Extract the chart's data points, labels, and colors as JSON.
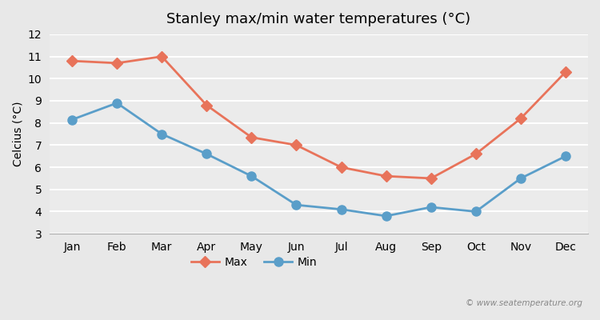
{
  "title": "Stanley max/min water temperatures (°C)",
  "xlabel": "",
  "ylabel": "Celcius (°C)",
  "months": [
    "Jan",
    "Feb",
    "Mar",
    "Apr",
    "May",
    "Jun",
    "Jul",
    "Aug",
    "Sep",
    "Oct",
    "Nov",
    "Dec"
  ],
  "max_values": [
    10.8,
    10.7,
    11.0,
    8.8,
    7.35,
    7.0,
    6.0,
    5.6,
    5.5,
    6.6,
    8.2,
    10.3
  ],
  "min_values": [
    8.15,
    8.9,
    7.5,
    6.6,
    5.6,
    4.3,
    4.1,
    3.8,
    4.2,
    4.0,
    5.5,
    6.5
  ],
  "max_color": "#e8735a",
  "min_color": "#5a9ec9",
  "ylim": [
    3,
    12
  ],
  "yticks": [
    3,
    4,
    5,
    6,
    7,
    8,
    9,
    10,
    11,
    12
  ],
  "bg_color": "#e8e8e8",
  "plot_bg_color": "#ebebeb",
  "grid_color": "#ffffff",
  "watermark": "© www.seatemperature.org",
  "legend_labels": [
    "Max",
    "Min"
  ]
}
